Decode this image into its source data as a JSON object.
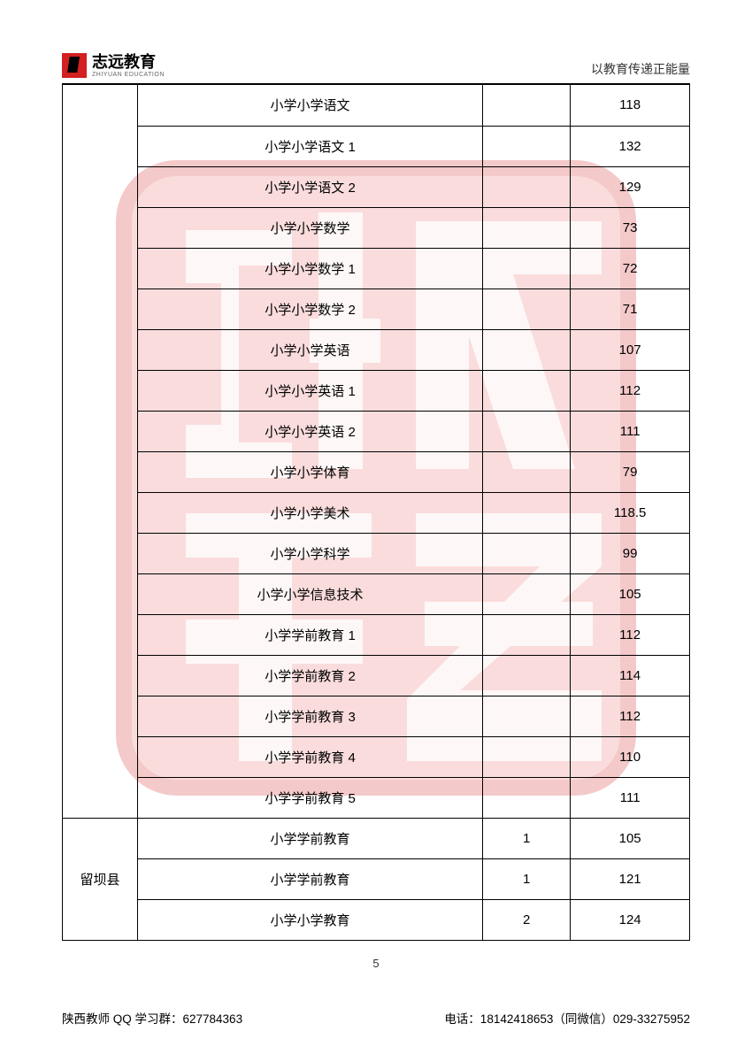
{
  "header": {
    "logo_title": "志远教育",
    "logo_subtitle": "ZHIYUAN EDUCATION",
    "slogan": "以教育传递正能量"
  },
  "watermark": {
    "fill": "#f5b3b3",
    "border": "#e88a8a"
  },
  "table": {
    "rows": [
      {
        "region": "",
        "subject": "小学小学语文",
        "count": "",
        "score": "118",
        "region_rowspan": 18
      },
      {
        "subject": "小学小学语文 1",
        "count": "",
        "score": "132"
      },
      {
        "subject": "小学小学语文 2",
        "count": "",
        "score": "129"
      },
      {
        "subject": "小学小学数学",
        "count": "",
        "score": "73"
      },
      {
        "subject": "小学小学数学 1",
        "count": "",
        "score": "72"
      },
      {
        "subject": "小学小学数学 2",
        "count": "",
        "score": "71"
      },
      {
        "subject": "小学小学英语",
        "count": "",
        "score": "107"
      },
      {
        "subject": "小学小学英语 1",
        "count": "",
        "score": "112"
      },
      {
        "subject": "小学小学英语 2",
        "count": "",
        "score": "111"
      },
      {
        "subject": "小学小学体育",
        "count": "",
        "score": "79"
      },
      {
        "subject": "小学小学美术",
        "count": "",
        "score": "118.5"
      },
      {
        "subject": "小学小学科学",
        "count": "",
        "score": "99"
      },
      {
        "subject": "小学小学信息技术",
        "count": "",
        "score": "105"
      },
      {
        "subject": "小学学前教育 1",
        "count": "",
        "score": "112"
      },
      {
        "subject": "小学学前教育 2",
        "count": "",
        "score": "114"
      },
      {
        "subject": "小学学前教育 3",
        "count": "",
        "score": "112"
      },
      {
        "subject": "小学学前教育 4",
        "count": "",
        "score": "110"
      },
      {
        "subject": "小学学前教育 5",
        "count": "",
        "score": "111"
      },
      {
        "region": "留坝县",
        "subject": "小学学前教育",
        "count": "1",
        "score": "105",
        "region_rowspan": 3
      },
      {
        "subject": "小学学前教育",
        "count": "1",
        "score": "121"
      },
      {
        "subject": "小学小学教育",
        "count": "2",
        "score": "124"
      }
    ]
  },
  "page_number": "5",
  "footer": {
    "left": "陕西教师 QQ 学习群：627784363",
    "right": "电话：18142418653（同微信）029-33275952"
  }
}
